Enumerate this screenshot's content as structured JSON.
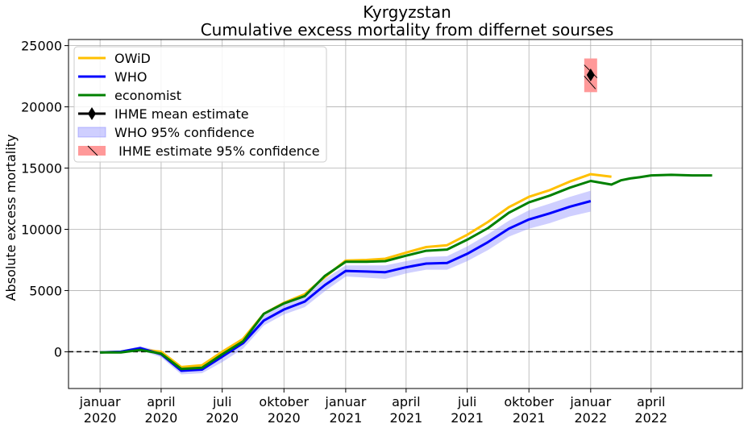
{
  "chart_data": {
    "type": "line",
    "title": "Kyrgyzstan",
    "subtitle": "Cumulative excess mortality from differnet sourses",
    "xlabel": "",
    "ylabel": "Absolute excess mortality",
    "ylim": [
      -3000,
      25500
    ],
    "xlim": [
      "2019-11-15",
      "2022-08-15"
    ],
    "grid": true,
    "legend_position": "top-left",
    "y_ticks": [
      "0",
      "5000",
      "10000",
      "15000",
      "20000",
      "25000"
    ],
    "x_ticks": [
      {
        "line1": "januar",
        "line2": "2020"
      },
      {
        "line1": "april",
        "line2": "2020"
      },
      {
        "line1": "juli",
        "line2": "2020"
      },
      {
        "line1": "oktober",
        "line2": "2020"
      },
      {
        "line1": "januar",
        "line2": "2021"
      },
      {
        "line1": "april",
        "line2": "2021"
      },
      {
        "line1": "juli",
        "line2": "2021"
      },
      {
        "line1": "oktober",
        "line2": "2021"
      },
      {
        "line1": "januar",
        "line2": "2022"
      },
      {
        "line1": "april",
        "line2": "2022"
      }
    ],
    "reference_line": {
      "y": 0,
      "style": "dashed",
      "color": "#000000"
    },
    "series": [
      {
        "name": "OWiD",
        "color": "#ffc000",
        "x": [
          "2020-01-01",
          "2020-02-01",
          "2020-03-01",
          "2020-04-01",
          "2020-05-01",
          "2020-06-01",
          "2020-07-01",
          "2020-08-01",
          "2020-09-01",
          "2020-10-01",
          "2020-11-01",
          "2020-12-01",
          "2021-01-01",
          "2021-02-01",
          "2021-03-01",
          "2021-04-01",
          "2021-05-01",
          "2021-06-01",
          "2021-07-01",
          "2021-08-01",
          "2021-09-01",
          "2021-10-01",
          "2021-11-01",
          "2021-12-01",
          "2022-01-01",
          "2022-02-01"
        ],
        "values": [
          -50,
          0,
          200,
          0,
          -1250,
          -1100,
          0,
          1050,
          3100,
          4000,
          4700,
          6100,
          7450,
          7500,
          7600,
          8100,
          8550,
          8700,
          9550,
          10600,
          11800,
          12650,
          13200,
          13900,
          14500,
          14300
        ]
      },
      {
        "name": "WHO",
        "color": "#0000ff",
        "x": [
          "2020-01-01",
          "2020-02-01",
          "2020-03-01",
          "2020-04-01",
          "2020-05-01",
          "2020-06-01",
          "2020-07-01",
          "2020-08-01",
          "2020-09-01",
          "2020-10-01",
          "2020-11-01",
          "2020-12-01",
          "2021-01-01",
          "2021-02-01",
          "2021-03-01",
          "2021-04-01",
          "2021-05-01",
          "2021-06-01",
          "2021-07-01",
          "2021-08-01",
          "2021-09-01",
          "2021-10-01",
          "2021-11-01",
          "2021-12-01",
          "2022-01-01"
        ],
        "values": [
          -50,
          0,
          300,
          -200,
          -1550,
          -1450,
          -400,
          700,
          2550,
          3450,
          4100,
          5450,
          6600,
          6550,
          6500,
          6900,
          7200,
          7250,
          8000,
          8950,
          10050,
          10800,
          11300,
          11850,
          12300
        ],
        "lower": [
          -100,
          -100,
          150,
          -450,
          -1850,
          -1750,
          -850,
          250,
          2150,
          3050,
          3650,
          4950,
          6150,
          6050,
          5950,
          6400,
          6700,
          6700,
          7400,
          8300,
          9400,
          10050,
          10500,
          11050,
          11450
        ],
        "upper": [
          0,
          100,
          450,
          50,
          -1250,
          -1150,
          50,
          1150,
          2950,
          3900,
          4550,
          5950,
          7050,
          7050,
          7050,
          7400,
          7750,
          7800,
          8600,
          9600,
          10700,
          11550,
          12100,
          12650,
          13150
        ]
      },
      {
        "name": "economist",
        "color": "#008000",
        "x": [
          "2020-01-01",
          "2020-02-01",
          "2020-03-01",
          "2020-04-01",
          "2020-05-01",
          "2020-06-01",
          "2020-07-01",
          "2020-08-01",
          "2020-09-01",
          "2020-10-01",
          "2020-11-01",
          "2020-12-01",
          "2021-01-01",
          "2021-02-01",
          "2021-03-01",
          "2021-04-01",
          "2021-05-01",
          "2021-06-01",
          "2021-07-01",
          "2021-08-01",
          "2021-09-01",
          "2021-10-01",
          "2021-11-01",
          "2021-12-01",
          "2022-01-01",
          "2022-02-01",
          "2022-02-15",
          "2022-03-01",
          "2022-03-15",
          "2022-04-01",
          "2022-05-01",
          "2022-06-01",
          "2022-07-01"
        ],
        "values": [
          -50,
          -50,
          150,
          -150,
          -1400,
          -1300,
          -200,
          850,
          3100,
          3950,
          4550,
          6200,
          7350,
          7350,
          7400,
          7850,
          8250,
          8350,
          9150,
          10100,
          11350,
          12200,
          12750,
          13400,
          13950,
          13650,
          14000,
          14150,
          14250,
          14400,
          14450,
          14400,
          14400
        ]
      },
      {
        "name": "IHME mean estimate",
        "color": "#000000",
        "x": [
          "2022-01-01"
        ],
        "values": [
          22600
        ]
      },
      {
        "name": "WHO 95% confidence",
        "color": "#9999ff"
      },
      {
        "name": " IHME estimate 95% confidence",
        "color": "#ff9999",
        "x": [
          "2022-01-01"
        ],
        "lower": [
          21200
        ],
        "upper": [
          23950
        ]
      }
    ]
  }
}
